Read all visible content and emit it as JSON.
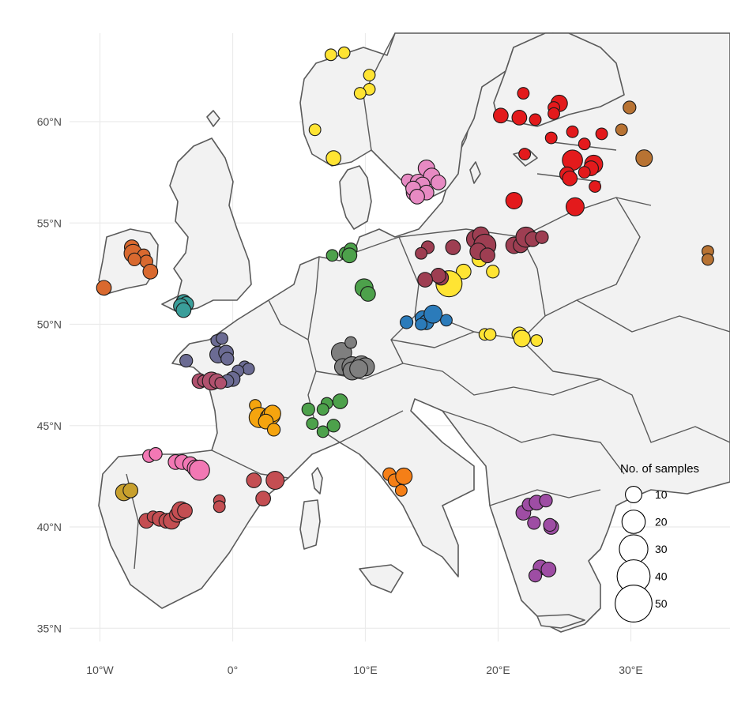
{
  "chart_data": {
    "type": "map-scatter",
    "xlim": [
      -11,
      36
    ],
    "ylim": [
      34.5,
      64.5
    ],
    "x_ticks": [
      {
        "value": -10,
        "label": "10°W"
      },
      {
        "value": 0,
        "label": "0°"
      },
      {
        "value": 10,
        "label": "10°E"
      },
      {
        "value": 20,
        "label": "20°E"
      },
      {
        "value": 30,
        "label": "30°E"
      }
    ],
    "y_ticks": [
      {
        "value": 35,
        "label": "35°N"
      },
      {
        "value": 40,
        "label": "40°N"
      },
      {
        "value": 45,
        "label": "45°N"
      },
      {
        "value": 50,
        "label": "50°N"
      },
      {
        "value": 55,
        "label": "55°N"
      },
      {
        "value": 60,
        "label": "60°N"
      }
    ],
    "grid": true,
    "legend": {
      "title": "No. of samples",
      "placement": "right",
      "sizes": [
        10,
        20,
        30,
        40,
        50
      ]
    },
    "groups": [
      {
        "color": "#FFE433",
        "points": [
          [
            7.4,
            63.3,
            5
          ],
          [
            8.4,
            63.4,
            5
          ],
          [
            10.3,
            62.3,
            5
          ],
          [
            10.3,
            61.6,
            5
          ],
          [
            9.6,
            61.4,
            5
          ],
          [
            6.2,
            59.6,
            5
          ],
          [
            7.6,
            58.2,
            8
          ],
          [
            17.4,
            52.6,
            8
          ],
          [
            16.3,
            52.0,
            25
          ],
          [
            19.6,
            52.6,
            6
          ],
          [
            18.6,
            53.2,
            8
          ],
          [
            19.0,
            49.5,
            5
          ],
          [
            19.4,
            49.5,
            5
          ],
          [
            21.6,
            49.5,
            8
          ],
          [
            21.8,
            49.3,
            10
          ],
          [
            22.9,
            49.2,
            5
          ]
        ]
      },
      {
        "color": "#E31A1C",
        "points": [
          [
            21.9,
            61.4,
            5
          ],
          [
            24.6,
            60.9,
            10
          ],
          [
            24.2,
            60.7,
            5
          ],
          [
            24.2,
            60.4,
            5
          ],
          [
            20.2,
            60.3,
            8
          ],
          [
            21.6,
            60.2,
            8
          ],
          [
            22.8,
            60.1,
            5
          ],
          [
            25.6,
            59.5,
            5
          ],
          [
            27.8,
            59.4,
            5
          ],
          [
            24.0,
            59.2,
            5
          ],
          [
            26.5,
            58.9,
            5
          ],
          [
            22.0,
            58.4,
            5
          ],
          [
            25.6,
            58.1,
            15
          ],
          [
            27.2,
            57.9,
            12
          ],
          [
            27.0,
            57.7,
            8
          ],
          [
            25.2,
            57.4,
            8
          ],
          [
            25.4,
            57.2,
            8
          ],
          [
            26.5,
            57.5,
            5
          ],
          [
            27.3,
            56.8,
            5
          ],
          [
            21.2,
            56.1,
            10
          ],
          [
            25.8,
            55.8,
            12
          ]
        ]
      },
      {
        "color": "#B87333",
        "points": [
          [
            29.9,
            60.7,
            6
          ],
          [
            29.3,
            59.6,
            5
          ],
          [
            31.0,
            58.2,
            10
          ],
          [
            35.8,
            53.6,
            5
          ],
          [
            35.8,
            53.2,
            5
          ]
        ]
      },
      {
        "color": "#E78AC3",
        "points": [
          [
            13.2,
            57.1,
            6
          ],
          [
            14.0,
            57.0,
            10
          ],
          [
            14.6,
            57.7,
            10
          ],
          [
            15.0,
            57.3,
            10
          ],
          [
            15.5,
            57.0,
            8
          ],
          [
            14.3,
            56.9,
            8
          ],
          [
            13.7,
            56.5,
            10
          ],
          [
            13.6,
            56.7,
            8
          ],
          [
            14.6,
            56.5,
            8
          ],
          [
            13.9,
            56.3,
            8
          ]
        ]
      },
      {
        "color": "#D9692F",
        "points": [
          [
            -7.6,
            53.8,
            8
          ],
          [
            -7.5,
            53.5,
            12
          ],
          [
            -6.7,
            53.4,
            6
          ],
          [
            -6.5,
            53.1,
            6
          ],
          [
            -7.4,
            53.2,
            6
          ],
          [
            -6.2,
            52.6,
            8
          ],
          [
            -9.7,
            51.8,
            8
          ]
        ]
      },
      {
        "color": "#3A9E9A",
        "points": [
          [
            -3.7,
            51.1,
            8
          ],
          [
            -3.5,
            51.0,
            8
          ],
          [
            -3.9,
            50.9,
            8
          ],
          [
            -3.7,
            50.7,
            8
          ]
        ]
      },
      {
        "color": "#9E3E52",
        "points": [
          [
            18.3,
            54.2,
            12
          ],
          [
            18.7,
            54.4,
            10
          ],
          [
            19.0,
            53.9,
            18
          ],
          [
            18.5,
            53.6,
            10
          ],
          [
            19.2,
            53.4,
            8
          ],
          [
            21.2,
            53.9,
            10
          ],
          [
            21.7,
            53.9,
            8
          ],
          [
            22.1,
            54.3,
            15
          ],
          [
            22.6,
            54.2,
            8
          ],
          [
            23.3,
            54.3,
            6
          ],
          [
            14.7,
            53.8,
            6
          ],
          [
            14.2,
            53.5,
            5
          ],
          [
            16.6,
            53.8,
            8
          ],
          [
            15.7,
            52.3,
            8
          ],
          [
            15.5,
            52.4,
            8
          ],
          [
            14.5,
            52.2,
            8
          ]
        ]
      },
      {
        "color": "#4DA14B",
        "points": [
          [
            8.5,
            53.5,
            6
          ],
          [
            8.9,
            53.7,
            6
          ],
          [
            8.8,
            53.4,
            8
          ],
          [
            7.5,
            53.4,
            5
          ],
          [
            9.9,
            51.8,
            12
          ],
          [
            10.2,
            51.5,
            8
          ],
          [
            5.7,
            45.8,
            6
          ],
          [
            7.1,
            46.1,
            5
          ],
          [
            8.1,
            46.2,
            8
          ],
          [
            6.8,
            45.8,
            5
          ],
          [
            6.0,
            45.1,
            5
          ],
          [
            6.8,
            44.7,
            5
          ],
          [
            7.6,
            45.0,
            6
          ]
        ]
      },
      {
        "color": "#2B7BBA",
        "points": [
          [
            13.1,
            50.1,
            6
          ],
          [
            14.3,
            50.3,
            8
          ],
          [
            14.6,
            50.1,
            8
          ],
          [
            15.1,
            50.5,
            12
          ],
          [
            14.2,
            50.0,
            5
          ],
          [
            16.1,
            50.2,
            5
          ]
        ]
      },
      {
        "color": "#6B6B93",
        "points": [
          [
            -1.2,
            49.2,
            5
          ],
          [
            -0.8,
            49.3,
            5
          ],
          [
            -1.1,
            48.5,
            10
          ],
          [
            -0.5,
            48.6,
            8
          ],
          [
            -0.4,
            48.3,
            6
          ],
          [
            -3.5,
            48.2,
            6
          ],
          [
            0.9,
            47.9,
            5
          ],
          [
            1.2,
            47.8,
            5
          ],
          [
            0.4,
            47.7,
            5
          ],
          [
            0.0,
            47.3,
            8
          ],
          [
            -0.4,
            47.2,
            6
          ]
        ]
      },
      {
        "color": "#B0516E",
        "points": [
          [
            -2.5,
            47.2,
            8
          ],
          [
            -2.2,
            47.2,
            5
          ],
          [
            -1.6,
            47.2,
            12
          ],
          [
            -1.2,
            47.2,
            8
          ],
          [
            -0.9,
            47.1,
            5
          ]
        ]
      },
      {
        "color": "#7F7F7F",
        "points": [
          [
            8.2,
            48.6,
            15
          ],
          [
            8.9,
            49.1,
            5
          ],
          [
            8.3,
            47.9,
            10
          ],
          [
            9.0,
            47.9,
            15
          ],
          [
            9.0,
            47.7,
            12
          ],
          [
            9.7,
            48.0,
            12
          ],
          [
            10.0,
            47.9,
            12
          ],
          [
            9.5,
            47.8,
            12
          ]
        ]
      },
      {
        "color": "#F5A40E",
        "points": [
          [
            1.7,
            46.0,
            5
          ],
          [
            2.0,
            45.4,
            15
          ],
          [
            2.7,
            45.4,
            10
          ],
          [
            2.9,
            45.5,
            12
          ],
          [
            3.0,
            45.6,
            10
          ],
          [
            2.5,
            45.2,
            8
          ],
          [
            3.1,
            44.8,
            6
          ]
        ]
      },
      {
        "color": "#F57F17",
        "points": [
          [
            11.8,
            42.6,
            6
          ],
          [
            12.2,
            42.3,
            6
          ],
          [
            12.9,
            42.5,
            10
          ],
          [
            12.7,
            41.8,
            5
          ]
        ]
      },
      {
        "color": "#F278B4",
        "points": [
          [
            -6.3,
            43.5,
            6
          ],
          [
            -5.8,
            43.6,
            6
          ],
          [
            -4.3,
            43.2,
            8
          ],
          [
            -3.8,
            43.2,
            8
          ],
          [
            -3.2,
            43.1,
            8
          ],
          [
            -2.8,
            42.9,
            10
          ],
          [
            -2.5,
            42.8,
            15
          ]
        ]
      },
      {
        "color": "#C44E52",
        "points": [
          [
            1.6,
            42.3,
            8
          ],
          [
            3.2,
            42.3,
            12
          ],
          [
            2.3,
            41.4,
            8
          ],
          [
            -1.0,
            41.3,
            5
          ],
          [
            -1.0,
            41.0,
            5
          ],
          [
            -6.5,
            40.3,
            8
          ],
          [
            -6.0,
            40.5,
            5
          ],
          [
            -5.5,
            40.4,
            8
          ],
          [
            -5.0,
            40.3,
            8
          ],
          [
            -4.6,
            40.3,
            10
          ],
          [
            -4.2,
            40.6,
            8
          ],
          [
            -3.9,
            40.8,
            12
          ],
          [
            -3.6,
            40.8,
            8
          ]
        ]
      },
      {
        "color": "#C8A02D",
        "points": [
          [
            -8.2,
            41.7,
            10
          ],
          [
            -7.7,
            41.8,
            8
          ]
        ]
      },
      {
        "color": "#9E4DA4",
        "points": [
          [
            21.9,
            40.7,
            8
          ],
          [
            22.3,
            41.1,
            6
          ],
          [
            22.9,
            41.2,
            8
          ],
          [
            23.6,
            41.3,
            6
          ],
          [
            22.7,
            40.2,
            6
          ],
          [
            24.0,
            40.0,
            8
          ],
          [
            23.9,
            40.1,
            6
          ],
          [
            23.2,
            38.0,
            8
          ],
          [
            23.8,
            37.9,
            8
          ],
          [
            22.8,
            37.6,
            6
          ]
        ]
      }
    ]
  }
}
